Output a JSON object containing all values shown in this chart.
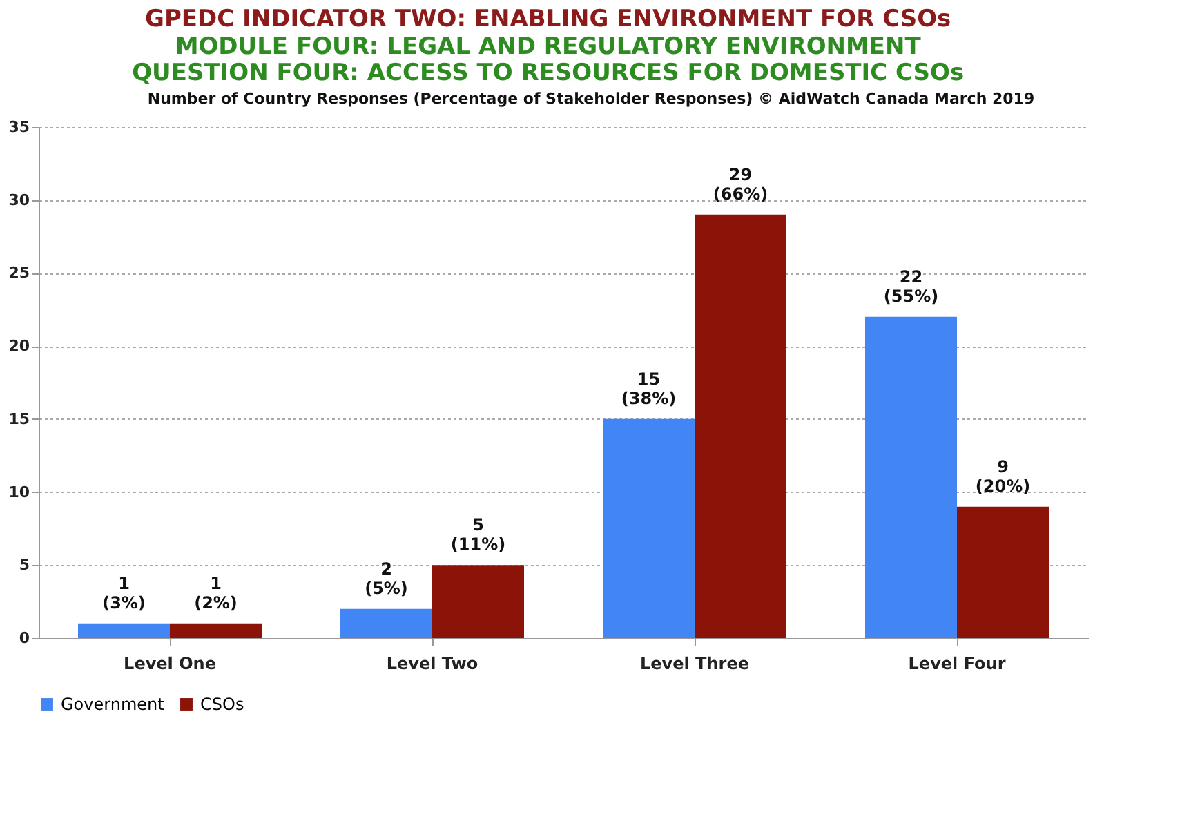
{
  "chart_data": {
    "type": "bar",
    "title": "GPEDC INDICATOR TWO: ENABLING ENVIRONMENT FOR CSOs",
    "subtitle": "MODULE FOUR: LEGAL AND REGULATORY ENVIRONMENT\nQUESTION FOUR: ACCESS TO RESOURCES FOR DOMESTIC CSOs",
    "annotations": [
      "Number of Country Responses (Percentage of Stakeholder Responses)      © AidWatch Canada March 2019"
    ],
    "categories": [
      "Level One",
      "Level Two",
      "Level Three",
      "Level Four"
    ],
    "series": [
      {
        "name": "Government",
        "color": "#4285f4",
        "values": [
          1,
          2,
          15,
          22
        ],
        "value_labels": [
          "1\n(3%)",
          "2\n(5%)",
          "15\n(38%)",
          "22\n(55%)"
        ]
      },
      {
        "name": "CSOs",
        "color": "#8b1307",
        "values": [
          1,
          5,
          29,
          9
        ],
        "value_labels": [
          "1\n(2%)",
          "5\n(11%)",
          "29\n(66%)",
          "9\n(20%)"
        ]
      }
    ],
    "ylim": [
      0,
      35
    ],
    "yticks": [
      0,
      5,
      10,
      15,
      20,
      25,
      30,
      35
    ],
    "grid": "y",
    "legend": "bottom"
  }
}
